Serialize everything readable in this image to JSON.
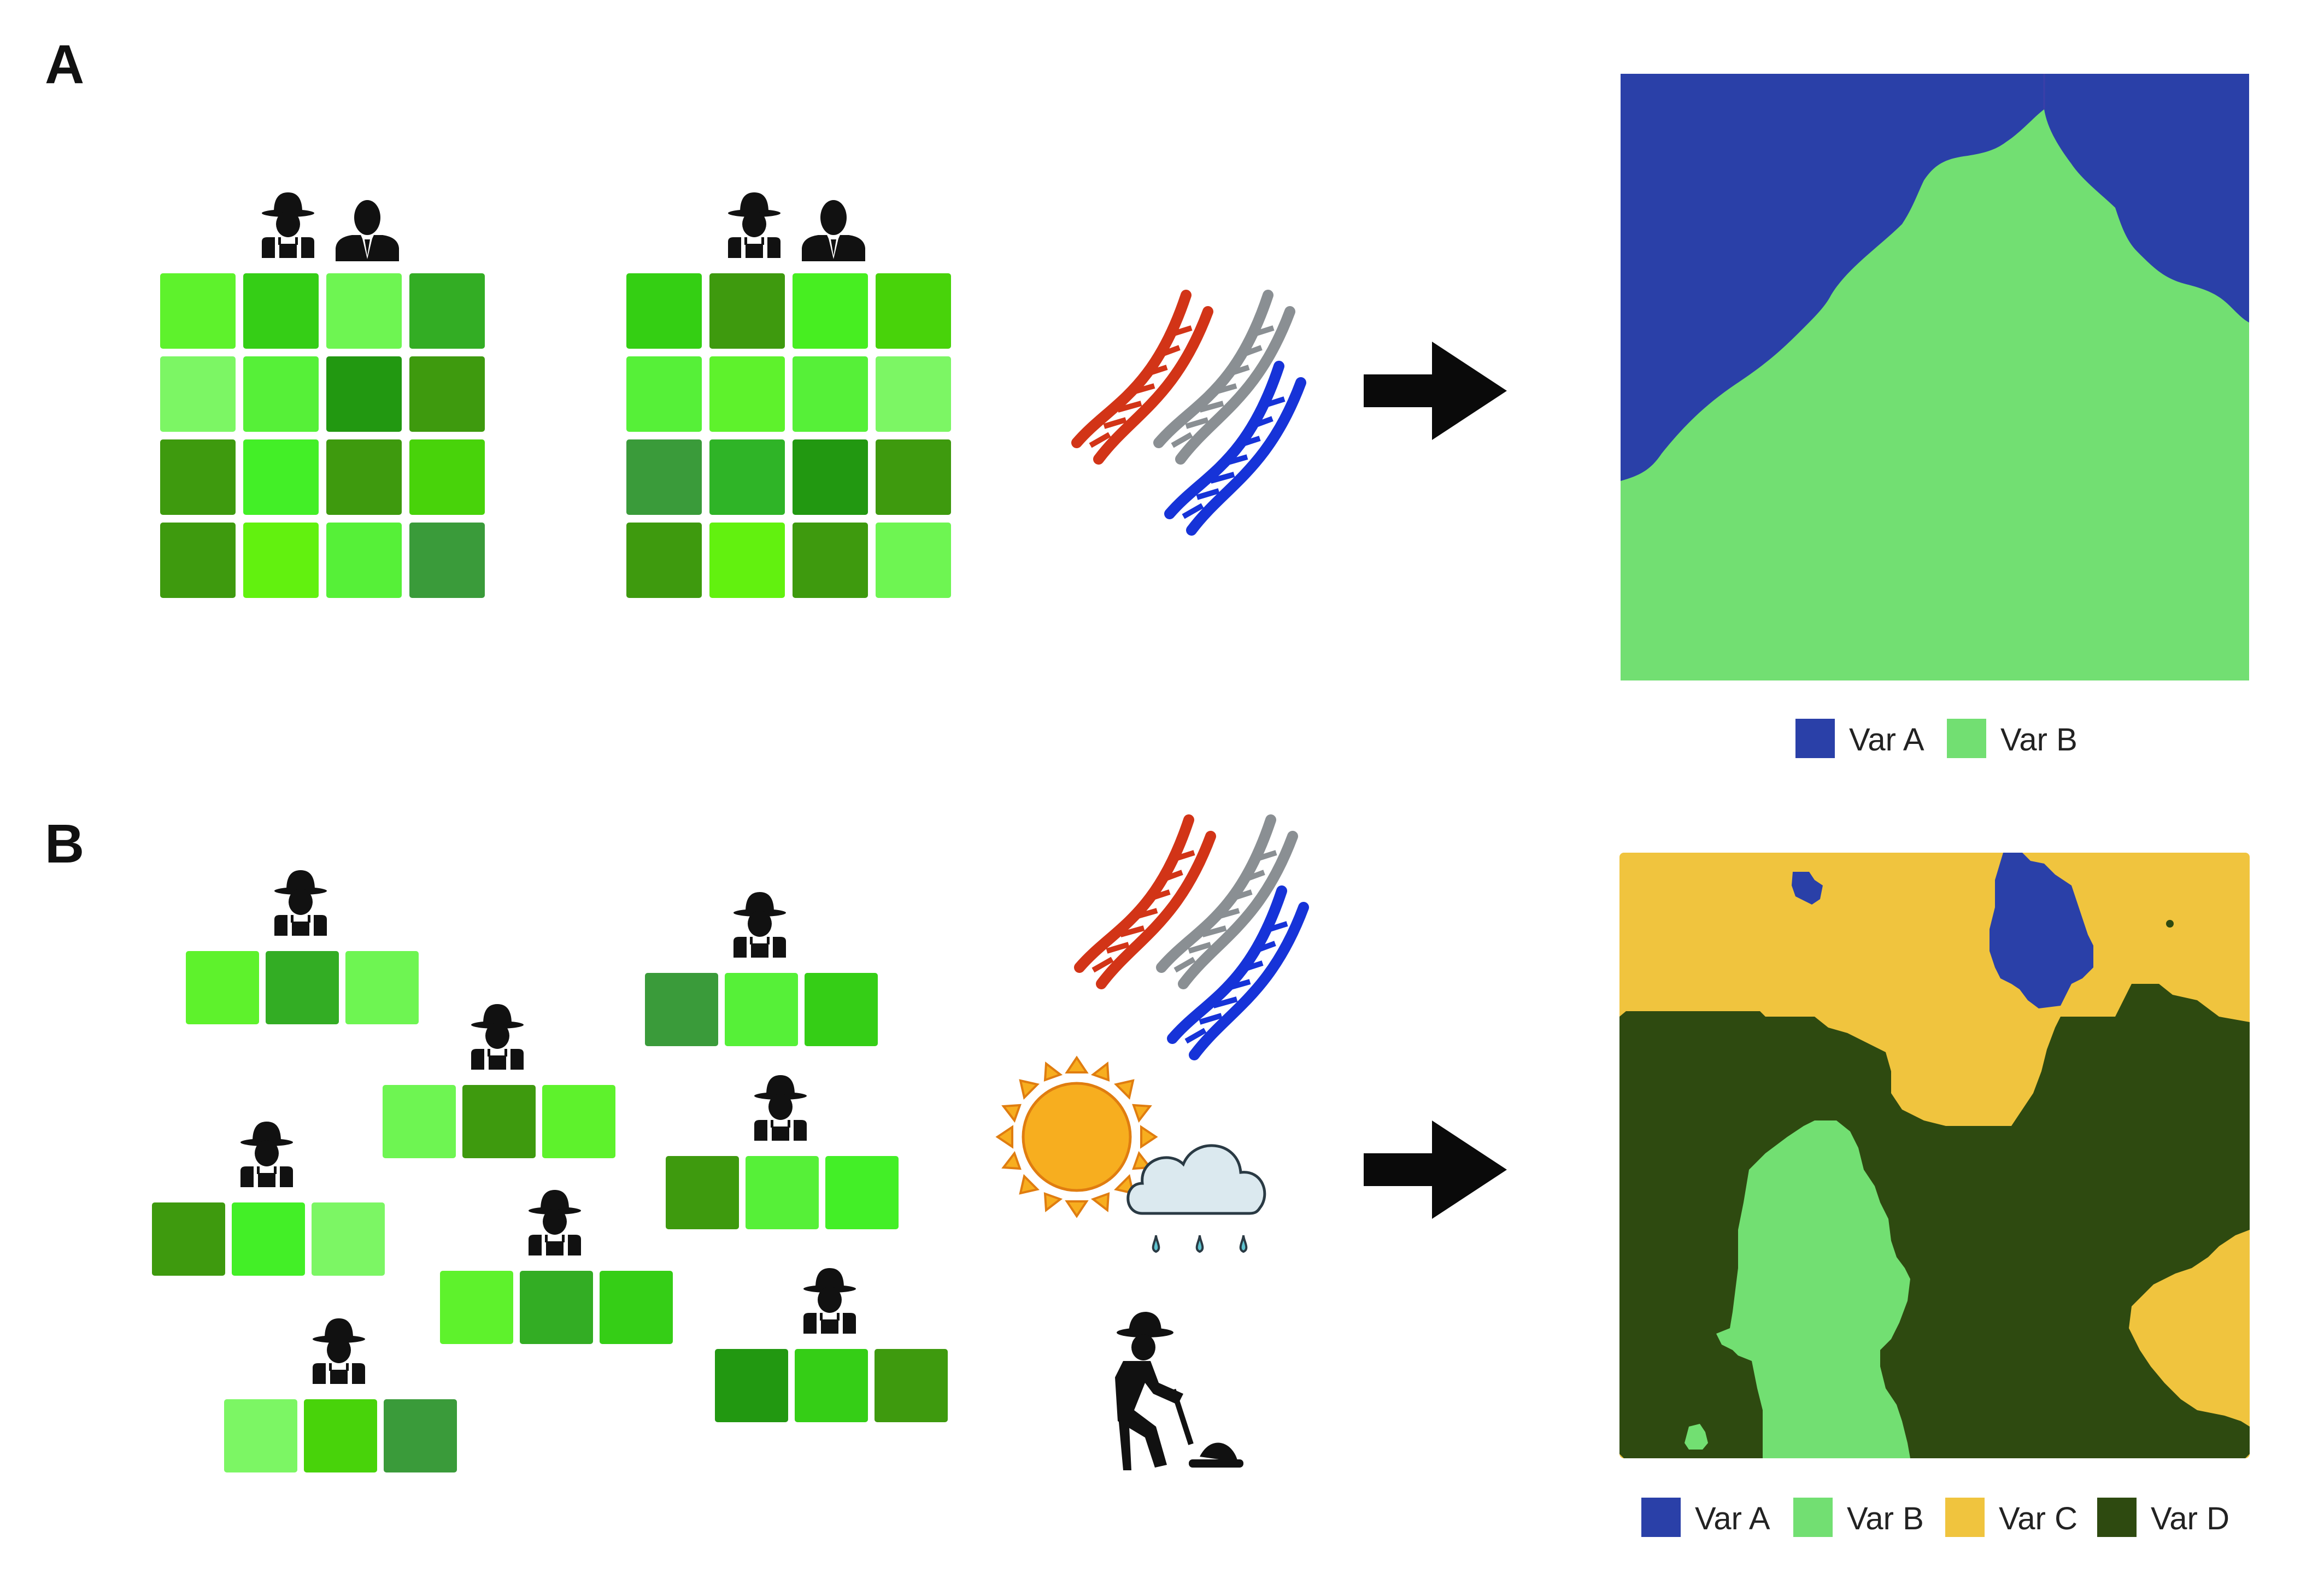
{
  "panel_a": {
    "label": "A",
    "trial_grid_colors": [
      [
        "#5ef22c",
        "#35ce16",
        "#6ef552",
        "#33ad24"
      ],
      [
        "#7cf664",
        "#56f038",
        "#229811",
        "#3e9a0e"
      ],
      [
        "#3e9a0e",
        "#43ef27",
        "#3e9a0e",
        "#48d30a"
      ],
      [
        "#3e9a0e",
        "#62f10f",
        "#56f038",
        "#3a9b3a"
      ]
    ],
    "trial_grid_colors_2": [
      [
        "#34cf13",
        "#3e9a0e",
        "#47ee21",
        "#48d30a"
      ],
      [
        "#56f038",
        "#5ef22c",
        "#56f038",
        "#7cf664"
      ],
      [
        "#3a9b3a",
        "#2fb427",
        "#229811",
        "#3e9a0e"
      ],
      [
        "#3e9a0e",
        "#62f10f",
        "#3e9a0e",
        "#6ef552"
      ]
    ],
    "legend": [
      {
        "label": "Var A",
        "color": "#2a40a8"
      },
      {
        "label": "Var B",
        "color": "#72df72"
      }
    ]
  },
  "panel_b": {
    "label": "B",
    "strip_colors": [
      [
        "#5ef22c",
        "#33ad24",
        "#6ef552"
      ],
      [
        "#3a9b3a",
        "#56f038",
        "#35ce16"
      ],
      [
        "#6ef552",
        "#3e9a0e",
        "#5ef22c"
      ],
      [
        "#3e9a0e",
        "#43ef27",
        "#7cf664"
      ],
      [
        "#3e9a0e",
        "#56f038",
        "#43ef27"
      ],
      [
        "#5ef22c",
        "#33ad24",
        "#35ce16"
      ],
      [
        "#229811",
        "#35ce16",
        "#3e9a0e"
      ],
      [
        "#7cf664",
        "#48d30a",
        "#3a9b3a"
      ]
    ],
    "legend": [
      {
        "label": "Var A",
        "color": "#2a40a8"
      },
      {
        "label": "Var B",
        "color": "#72df72"
      },
      {
        "label": "Var C",
        "color": "#f0c43e"
      },
      {
        "label": "Var D",
        "color": "#2e4a10"
      }
    ]
  },
  "icons": {
    "farmer": "farmer-icon",
    "scientist": "scientist-icon",
    "dna": "dna-helix-icon",
    "arrow": "right-arrow-icon",
    "sun": "sun-icon",
    "rain": "rain-cloud-icon",
    "gardener": "gardener-digging-icon"
  },
  "colors": {
    "dna_red": "#d23417",
    "dna_gray": "#8a8f93",
    "dna_blue": "#1633d8",
    "arrow": "#0a0a0a",
    "sun": "#f7ae1f"
  }
}
